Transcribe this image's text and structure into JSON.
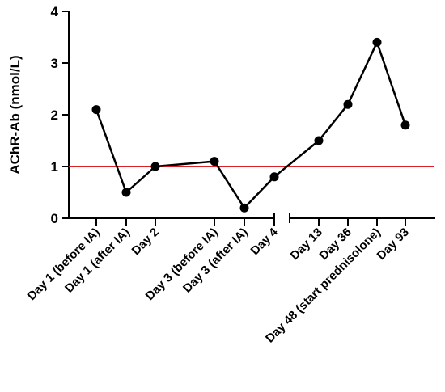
{
  "chart_data": {
    "type": "line",
    "title": "",
    "xlabel": "",
    "ylabel": "AChR-Ab (nmol/L)",
    "ylim": [
      0,
      4
    ],
    "yticks": [
      "0",
      "1",
      "2",
      "3",
      "4"
    ],
    "categories": [
      "Day 1 (before IA)",
      "Day 1 (after IA)",
      "Day 2",
      "Day 3 (before IA)",
      "Day 3 (after IA)",
      "Day 4",
      "Day 13",
      "Day 36",
      "Day 48 (start prednisolone)",
      "Day 93"
    ],
    "series": [
      {
        "values": [
          2.1,
          0.5,
          1.0,
          1.1,
          0.2,
          0.8,
          1.5,
          2.2,
          3.4,
          1.8
        ]
      }
    ],
    "reference_line": {
      "value": 1.0,
      "color": "#dd1f26"
    },
    "axis_break_after_category": 5,
    "grid": false,
    "legend": "none",
    "colors": {
      "line": "#000000",
      "marker": "#000000",
      "axis": "#000000"
    }
  }
}
